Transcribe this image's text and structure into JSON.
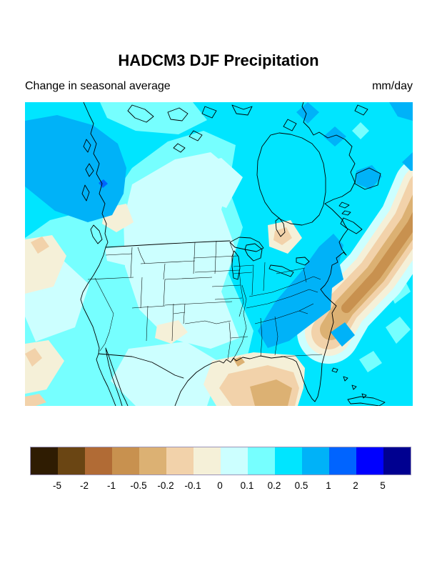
{
  "header": {
    "title": "HADCM3 DJF Precipitation",
    "subtitle_left": "Change in seasonal average",
    "subtitle_right": "mm/day"
  },
  "palette": {
    "brown_dark": "#2f1c02",
    "brown_2": "#6a4513",
    "brown_1": "#b16b35",
    "brown_05": "#c8914f",
    "tan_02": "#dcb173",
    "tan_01": "#f2d2aa",
    "cream": "#f5f0d8",
    "pale": "#ccffff",
    "light": "#76ffff",
    "cyan": "#00e5ff",
    "sky": "#00b2f8",
    "blue": "#0064ff",
    "blue_strong": "#0000ff",
    "navy": "#000090",
    "coast_line": "#000000"
  },
  "colorbar": {
    "colors": [
      "#2f1c02",
      "#6a4513",
      "#b16b35",
      "#c8914f",
      "#dcb173",
      "#f2d2aa",
      "#f5f0d8",
      "#ccffff",
      "#76ffff",
      "#00e5ff",
      "#00b2f8",
      "#0064ff",
      "#0000ff",
      "#000090"
    ],
    "tick_labels": [
      "-5",
      "-2",
      "-1",
      "-0.5",
      "-0.2",
      "-0.1",
      "0",
      "0.1",
      "0.2",
      "0.5",
      "1",
      "2",
      "5"
    ],
    "border_color": "#9a94b8"
  },
  "chart_data": {
    "type": "filled_contour_map",
    "title": "HADCM3 DJF Precipitation",
    "subtitle": "Change in seasonal average",
    "units": "mm/day",
    "region": "North America",
    "levels": [
      -5,
      -2,
      -1,
      -0.5,
      -0.2,
      -0.1,
      0,
      0.1,
      0.2,
      0.5,
      1,
      2,
      5
    ],
    "level_colors": [
      "#2f1c02",
      "#6a4513",
      "#b16b35",
      "#c8914f",
      "#dcb173",
      "#f2d2aa",
      "#f5f0d8",
      "#ccffff",
      "#76ffff",
      "#00e5ff",
      "#00b2f8",
      "#0064ff",
      "#0000ff",
      "#000090"
    ],
    "legend_position": "bottom",
    "notable_features": [
      {
        "area": "Gulf of Alaska / Pacific Northwest coast",
        "value_range_mm_day": "0.5 to 1"
      },
      {
        "area": "Appalachians and Mid-Atlantic states",
        "value_range_mm_day": "0.5 to 1"
      },
      {
        "area": "Northeast Canada and Newfoundland patches",
        "value_range_mm_day": "0.5 to 1"
      },
      {
        "area": "Small spot on British Columbia coast",
        "value_range_mm_day": "1 to 2"
      },
      {
        "area": "Northwest Atlantic band off New England",
        "value_range_mm_day": "-1 to -0.2"
      },
      {
        "area": "Gulf of Mexico coast (Louisiana to Florida panhandle)",
        "value_range_mm_day": "-0.5 to -0.1"
      },
      {
        "area": "Central Great Plains and interior west",
        "value_range_mm_day": "-0.1 to 0.1"
      },
      {
        "area": "Subtropical eastern Pacific patches (left edge)",
        "value_range_mm_day": "-0.2 to 0"
      },
      {
        "area": "Spot north of Lake Superior",
        "value_range_mm_day": "-0.2 to -0.1"
      },
      {
        "area": "Most remaining ocean and Canada",
        "value_range_mm_day": "0.1 to 0.5"
      }
    ]
  }
}
